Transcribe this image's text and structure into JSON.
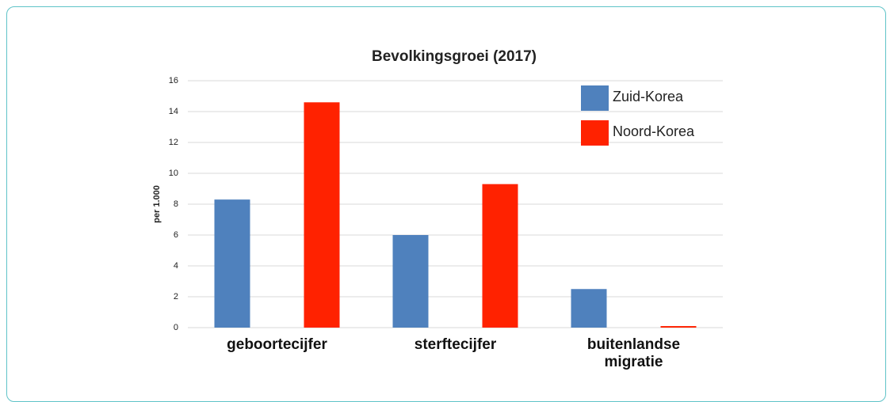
{
  "chart_data": {
    "type": "bar",
    "title": "Bevolkingsgroei (2017)",
    "y_label": "per 1.000",
    "categories": [
      "geboortecijfer",
      "sterftecijfer",
      "buitenlandse migratie"
    ],
    "series": [
      {
        "name": "Zuid-Korea",
        "color": "#4f81bd",
        "values": [
          8.3,
          6.0,
          2.5
        ]
      },
      {
        "name": "Noord-Korea",
        "color": "#ff2200",
        "values": [
          14.6,
          9.3,
          0.1
        ]
      }
    ],
    "ylim": [
      0,
      16
    ],
    "yticks": [
      0,
      2,
      4,
      6,
      8,
      10,
      12,
      14,
      16
    ],
    "grid": true,
    "legend": "top-right"
  }
}
